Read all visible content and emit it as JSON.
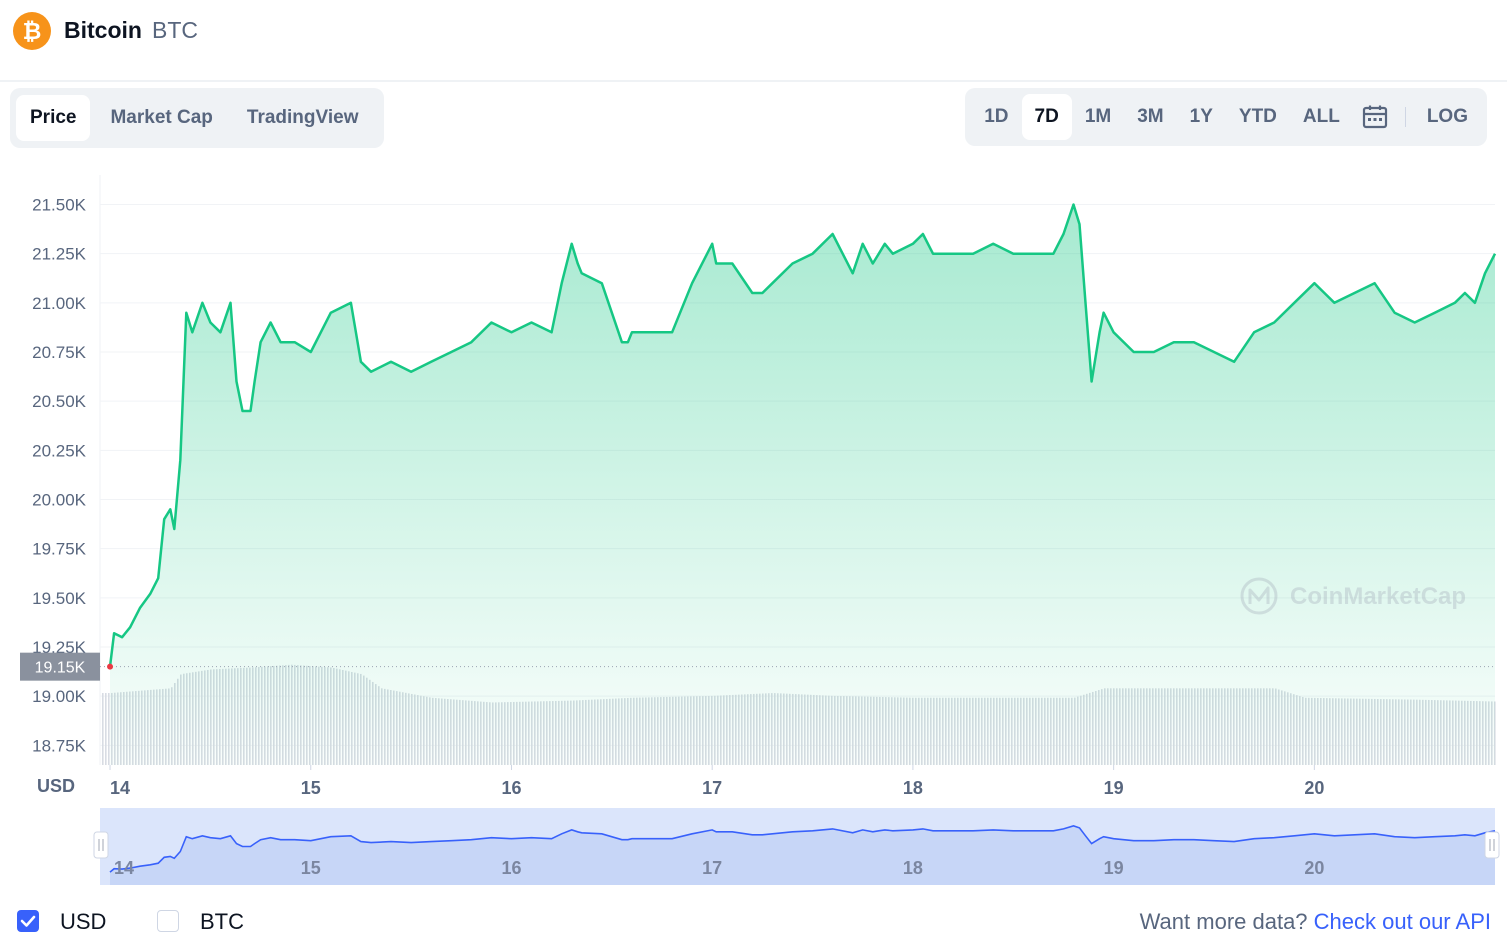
{
  "header": {
    "coin_name": "Bitcoin",
    "coin_symbol": "BTC",
    "logo_glyph": "₿",
    "logo_color": "#f7931a"
  },
  "tabs": [
    {
      "label": "Price",
      "active": true
    },
    {
      "label": "Market Cap",
      "active": false
    },
    {
      "label": "TradingView",
      "active": false
    }
  ],
  "ranges": [
    {
      "label": "1D",
      "active": false
    },
    {
      "label": "7D",
      "active": true
    },
    {
      "label": "1M",
      "active": false
    },
    {
      "label": "3M",
      "active": false
    },
    {
      "label": "1Y",
      "active": false
    },
    {
      "label": "YTD",
      "active": false
    },
    {
      "label": "ALL",
      "active": false
    }
  ],
  "calendar_icon": "calendar-icon",
  "log_label": "LOG",
  "chart_data": {
    "type": "area",
    "unit_label": "USD",
    "y_ticks": [
      "21.50K",
      "21.25K",
      "21.00K",
      "20.75K",
      "20.50K",
      "20.25K",
      "20.00K",
      "19.75K",
      "19.50K",
      "19.25K",
      "19.00K",
      "18.75K"
    ],
    "y_tick_values": [
      21500,
      21250,
      21000,
      20750,
      20500,
      20250,
      20000,
      19750,
      19500,
      19250,
      19000,
      18750
    ],
    "ylim": [
      18650,
      21650
    ],
    "x_ticks": [
      "14",
      "15",
      "16",
      "17",
      "18",
      "19",
      "20"
    ],
    "x_tick_positions": [
      0.0,
      1.0,
      2.0,
      3.0,
      4.0,
      5.0,
      6.0
    ],
    "xlim": [
      -0.05,
      6.9
    ],
    "start_label": "19.15K",
    "start_value": 19150,
    "line_color": "#16c784",
    "series": [
      {
        "x": [
          0.0,
          0.02,
          0.06,
          0.1,
          0.15,
          0.2,
          0.24,
          0.27,
          0.3,
          0.32,
          0.35,
          0.38,
          0.41,
          0.46,
          0.5,
          0.55,
          0.6,
          0.63,
          0.66,
          0.7,
          0.72,
          0.75,
          0.8,
          0.85,
          0.92,
          1.0,
          1.1,
          1.2,
          1.25,
          1.3,
          1.4,
          1.5,
          1.6,
          1.7,
          1.8,
          1.9,
          2.0,
          2.1,
          2.2,
          2.25,
          2.3,
          2.33,
          2.35,
          2.45,
          2.55,
          2.58,
          2.6,
          2.7,
          2.8,
          2.9,
          3.0,
          3.02,
          3.1,
          3.2,
          3.25,
          3.3,
          3.4,
          3.5,
          3.6,
          3.7,
          3.75,
          3.8,
          3.83,
          3.86,
          3.9,
          4.0,
          4.05,
          4.1,
          4.2,
          4.3,
          4.4,
          4.5,
          4.6,
          4.7,
          4.75,
          4.8,
          4.83,
          4.86,
          4.89,
          4.93,
          4.95,
          5.0,
          5.1,
          5.2,
          5.3,
          5.4,
          5.5,
          5.6,
          5.7,
          5.8,
          5.9,
          6.0,
          6.05,
          6.1,
          6.2,
          6.3,
          6.4,
          6.5,
          6.6,
          6.7,
          6.75,
          6.8,
          6.85,
          6.9
        ],
        "values": [
          19150,
          19320,
          19300,
          19350,
          19450,
          19520,
          19600,
          19900,
          19950,
          19850,
          20200,
          20950,
          20850,
          21000,
          20900,
          20850,
          21000,
          20600,
          20450,
          20450,
          20600,
          20800,
          20900,
          20800,
          20800,
          20750,
          20950,
          21000,
          20700,
          20650,
          20700,
          20650,
          20700,
          20750,
          20800,
          20900,
          20850,
          20900,
          20850,
          21100,
          21300,
          21200,
          21150,
          21100,
          20800,
          20800,
          20850,
          20850,
          20850,
          21100,
          21300,
          21200,
          21200,
          21050,
          21050,
          21100,
          21200,
          21250,
          21350,
          21150,
          21300,
          21200,
          21250,
          21300,
          21250,
          21300,
          21350,
          21250,
          21250,
          21250,
          21300,
          21250,
          21250,
          21250,
          21350,
          21500,
          21400,
          21000,
          20600,
          20850,
          20950,
          20850,
          20750,
          20750,
          20800,
          20800,
          20750,
          20700,
          20850,
          20900,
          21000,
          21100,
          21050,
          21000,
          21050,
          21100,
          20950,
          20900,
          20950,
          21000,
          21050,
          21000,
          21150,
          21250
        ]
      }
    ],
    "volume": {
      "x": [
        0.0,
        0.3,
        0.35,
        0.5,
        0.7,
        0.9,
        1.1,
        1.25,
        1.35,
        1.6,
        1.9,
        2.3,
        2.6,
        3.0,
        3.3,
        3.6,
        4.0,
        4.4,
        4.8,
        4.95,
        5.3,
        5.8,
        5.95,
        6.5,
        6.9
      ],
      "values": [
        0.55,
        0.6,
        0.75,
        0.8,
        0.82,
        0.85,
        0.82,
        0.75,
        0.6,
        0.5,
        0.45,
        0.47,
        0.5,
        0.52,
        0.55,
        0.52,
        0.5,
        0.5,
        0.5,
        0.6,
        0.6,
        0.6,
        0.5,
        0.48,
        0.46
      ]
    },
    "navigator": {
      "x_ticks": [
        "14",
        "15",
        "16",
        "17",
        "18",
        "19",
        "20"
      ]
    },
    "watermark": "CoinMarketCap"
  },
  "footer": {
    "usd_label": "USD",
    "usd_checked": true,
    "btc_label": "BTC",
    "btc_checked": false,
    "api_prompt": "Want more data?",
    "api_link": "Check out our API"
  }
}
